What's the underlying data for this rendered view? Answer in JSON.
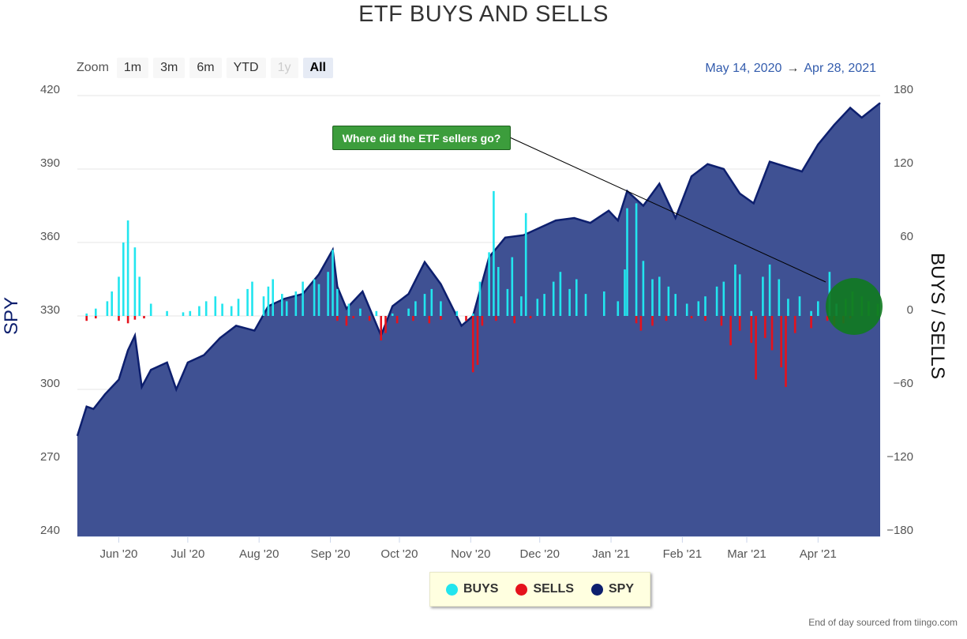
{
  "title": "ETF BUYS AND SELLS",
  "zoom": {
    "label": "Zoom",
    "buttons": [
      "1m",
      "3m",
      "6m",
      "YTD",
      "1y",
      "All"
    ],
    "active": "All",
    "disabled": [
      "1y"
    ]
  },
  "range": {
    "from": "May 14, 2020",
    "arrow": "→",
    "to": "Apr 28, 2021"
  },
  "annotation": "Where did the ETF sellers go?",
  "credits": "End of day sourced from tiingo.com",
  "colors": {
    "area": "#3f5193",
    "area_line": "#0d1f6e",
    "buys": "#22e5ee",
    "sells": "#e5121c",
    "highlight": "#0f7a1f",
    "annotation_bg": "#3c9d3c"
  },
  "chart_data": {
    "type": "area",
    "title": "ETF BUYS AND SELLS",
    "x_ticks": [
      "Jun '20",
      "Jul '20",
      "Aug '20",
      "Sep '20",
      "Oct '20",
      "Nov '20",
      "Dec '20",
      "Jan '21",
      "Feb '21",
      "Mar '21",
      "Apr '21"
    ],
    "x_tick_dates": [
      "2020-06-01",
      "2020-07-01",
      "2020-08-01",
      "2020-09-01",
      "2020-10-01",
      "2020-11-01",
      "2020-12-01",
      "2021-01-01",
      "2021-02-01",
      "2021-03-01",
      "2021-04-01"
    ],
    "x_range": [
      "2020-05-14",
      "2021-04-28"
    ],
    "left_axis": {
      "label": "SPY",
      "ticks": [
        240,
        270,
        300,
        330,
        360,
        390,
        420
      ],
      "ylim": [
        240,
        420
      ]
    },
    "right_axis": {
      "label": "BUYS / SELLS",
      "ticks": [
        -180,
        -120,
        -60,
        0,
        60,
        120,
        180
      ],
      "ylim": [
        -180,
        180
      ]
    },
    "legend": {
      "position": "bottom-center",
      "items": [
        {
          "name": "BUYS",
          "color": "#22e5ee"
        },
        {
          "name": "SELLS",
          "color": "#e5121c"
        },
        {
          "name": "SPY",
          "color": "#0d1f6e"
        }
      ]
    },
    "spy": [
      [
        "2020-05-14",
        281
      ],
      [
        "2020-05-18",
        293
      ],
      [
        "2020-05-21",
        292
      ],
      [
        "2020-05-26",
        298
      ],
      [
        "2020-06-01",
        304
      ],
      [
        "2020-06-05",
        316
      ],
      [
        "2020-06-08",
        322
      ],
      [
        "2020-06-11",
        301
      ],
      [
        "2020-06-15",
        308
      ],
      [
        "2020-06-22",
        311
      ],
      [
        "2020-06-26",
        300
      ],
      [
        "2020-07-01",
        311
      ],
      [
        "2020-07-08",
        314
      ],
      [
        "2020-07-15",
        321
      ],
      [
        "2020-07-22",
        326
      ],
      [
        "2020-07-30",
        324
      ],
      [
        "2020-08-05",
        334
      ],
      [
        "2020-08-12",
        337
      ],
      [
        "2020-08-20",
        339
      ],
      [
        "2020-08-27",
        347
      ],
      [
        "2020-09-02",
        357
      ],
      [
        "2020-09-04",
        342
      ],
      [
        "2020-09-08",
        333
      ],
      [
        "2020-09-15",
        340
      ],
      [
        "2020-09-23",
        322
      ],
      [
        "2020-09-28",
        334
      ],
      [
        "2020-10-05",
        339
      ],
      [
        "2020-10-12",
        352
      ],
      [
        "2020-10-19",
        343
      ],
      [
        "2020-10-28",
        326
      ],
      [
        "2020-11-02",
        330
      ],
      [
        "2020-11-09",
        354
      ],
      [
        "2020-11-16",
        362
      ],
      [
        "2020-11-24",
        363
      ],
      [
        "2020-12-01",
        366
      ],
      [
        "2020-12-08",
        369
      ],
      [
        "2020-12-16",
        370
      ],
      [
        "2020-12-23",
        368
      ],
      [
        "2020-12-31",
        373
      ],
      [
        "2021-01-04",
        369
      ],
      [
        "2021-01-08",
        381
      ],
      [
        "2021-01-15",
        375
      ],
      [
        "2021-01-22",
        384
      ],
      [
        "2021-01-29",
        370
      ],
      [
        "2021-02-05",
        387
      ],
      [
        "2021-02-12",
        392
      ],
      [
        "2021-02-19",
        390
      ],
      [
        "2021-02-26",
        380
      ],
      [
        "2021-03-04",
        376
      ],
      [
        "2021-03-11",
        393
      ],
      [
        "2021-03-18",
        391
      ],
      [
        "2021-03-25",
        389
      ],
      [
        "2021-04-01",
        400
      ],
      [
        "2021-04-08",
        408
      ],
      [
        "2021-04-15",
        415
      ],
      [
        "2021-04-20",
        411
      ],
      [
        "2021-04-28",
        417
      ]
    ],
    "buys": [
      [
        "2020-05-18",
        2
      ],
      [
        "2020-05-22",
        6
      ],
      [
        "2020-05-27",
        12
      ],
      [
        "2020-05-29",
        20
      ],
      [
        "2020-06-01",
        32
      ],
      [
        "2020-06-03",
        60
      ],
      [
        "2020-06-05",
        78
      ],
      [
        "2020-06-08",
        56
      ],
      [
        "2020-06-10",
        32
      ],
      [
        "2020-06-15",
        10
      ],
      [
        "2020-06-22",
        4
      ],
      [
        "2020-06-29",
        3
      ],
      [
        "2020-07-02",
        4
      ],
      [
        "2020-07-06",
        8
      ],
      [
        "2020-07-09",
        12
      ],
      [
        "2020-07-13",
        16
      ],
      [
        "2020-07-16",
        10
      ],
      [
        "2020-07-20",
        8
      ],
      [
        "2020-07-23",
        14
      ],
      [
        "2020-07-27",
        22
      ],
      [
        "2020-07-29",
        28
      ],
      [
        "2020-08-03",
        16
      ],
      [
        "2020-08-05",
        24
      ],
      [
        "2020-08-07",
        30
      ],
      [
        "2020-08-11",
        18
      ],
      [
        "2020-08-13",
        12
      ],
      [
        "2020-08-17",
        20
      ],
      [
        "2020-08-20",
        28
      ],
      [
        "2020-08-25",
        30
      ],
      [
        "2020-08-27",
        26
      ],
      [
        "2020-08-31",
        36
      ],
      [
        "2020-09-02",
        54
      ],
      [
        "2020-09-04",
        22
      ],
      [
        "2020-09-09",
        10
      ],
      [
        "2020-09-14",
        6
      ],
      [
        "2020-09-21",
        4
      ],
      [
        "2020-09-28",
        2
      ],
      [
        "2020-10-05",
        6
      ],
      [
        "2020-10-08",
        12
      ],
      [
        "2020-10-12",
        18
      ],
      [
        "2020-10-15",
        22
      ],
      [
        "2020-10-19",
        12
      ],
      [
        "2020-10-26",
        4
      ],
      [
        "2020-11-02",
        2
      ],
      [
        "2020-11-05",
        28
      ],
      [
        "2020-11-09",
        52
      ],
      [
        "2020-11-11",
        102
      ],
      [
        "2020-11-13",
        40
      ],
      [
        "2020-11-17",
        22
      ],
      [
        "2020-11-19",
        48
      ],
      [
        "2020-11-23",
        16
      ],
      [
        "2020-11-25",
        84
      ],
      [
        "2020-11-30",
        14
      ],
      [
        "2020-12-03",
        18
      ],
      [
        "2020-12-07",
        28
      ],
      [
        "2020-12-10",
        36
      ],
      [
        "2020-12-14",
        22
      ],
      [
        "2020-12-17",
        30
      ],
      [
        "2020-12-21",
        18
      ],
      [
        "2020-12-29",
        20
      ],
      [
        "2021-01-04",
        12
      ],
      [
        "2021-01-07",
        38
      ],
      [
        "2021-01-08",
        88
      ],
      [
        "2021-01-12",
        92
      ],
      [
        "2021-01-15",
        45
      ],
      [
        "2021-01-19",
        30
      ],
      [
        "2021-01-22",
        32
      ],
      [
        "2021-01-26",
        24
      ],
      [
        "2021-01-29",
        18
      ],
      [
        "2021-02-03",
        10
      ],
      [
        "2021-02-08",
        12
      ],
      [
        "2021-02-11",
        16
      ],
      [
        "2021-02-16",
        24
      ],
      [
        "2021-02-19",
        28
      ],
      [
        "2021-02-24",
        42
      ],
      [
        "2021-02-26",
        34
      ],
      [
        "2021-03-03",
        4
      ],
      [
        "2021-03-08",
        32
      ],
      [
        "2021-03-11",
        42
      ],
      [
        "2021-03-15",
        30
      ],
      [
        "2021-03-19",
        14
      ],
      [
        "2021-03-24",
        16
      ],
      [
        "2021-03-29",
        4
      ],
      [
        "2021-04-01",
        12
      ],
      [
        "2021-04-06",
        36
      ],
      [
        "2021-04-09",
        10
      ],
      [
        "2021-04-13",
        14
      ],
      [
        "2021-04-16",
        20
      ],
      [
        "2021-04-20",
        16
      ],
      [
        "2021-04-23",
        12
      ],
      [
        "2021-04-27",
        10
      ]
    ],
    "sells": [
      [
        "2020-05-18",
        -4
      ],
      [
        "2020-05-22",
        -2
      ],
      [
        "2020-06-01",
        -4
      ],
      [
        "2020-06-05",
        -6
      ],
      [
        "2020-06-08",
        -3
      ],
      [
        "2020-06-12",
        -2
      ],
      [
        "2020-09-04",
        -4
      ],
      [
        "2020-09-08",
        -8
      ],
      [
        "2020-09-11",
        -2
      ],
      [
        "2020-09-18",
        -4
      ],
      [
        "2020-09-23",
        -20
      ],
      [
        "2020-09-25",
        -14
      ],
      [
        "2020-09-30",
        -6
      ],
      [
        "2020-10-07",
        -4
      ],
      [
        "2020-10-14",
        -6
      ],
      [
        "2020-10-19",
        -3
      ],
      [
        "2020-10-30",
        -4
      ],
      [
        "2020-11-02",
        -46
      ],
      [
        "2020-11-04",
        -40
      ],
      [
        "2020-11-06",
        -8
      ],
      [
        "2020-11-12",
        -4
      ],
      [
        "2020-11-20",
        -6
      ],
      [
        "2020-11-27",
        -2
      ],
      [
        "2021-01-12",
        -6
      ],
      [
        "2021-01-14",
        -12
      ],
      [
        "2021-01-19",
        -8
      ],
      [
        "2021-01-25",
        -4
      ],
      [
        "2021-02-05",
        -2
      ],
      [
        "2021-02-11",
        -4
      ],
      [
        "2021-02-18",
        -8
      ],
      [
        "2021-02-22",
        -24
      ],
      [
        "2021-02-26",
        -12
      ],
      [
        "2021-03-03",
        -22
      ],
      [
        "2021-03-05",
        -52
      ],
      [
        "2021-03-09",
        -18
      ],
      [
        "2021-03-12",
        -28
      ],
      [
        "2021-03-16",
        -42
      ],
      [
        "2021-03-18",
        -58
      ],
      [
        "2021-03-22",
        -14
      ],
      [
        "2021-03-29",
        -10
      ],
      [
        "2021-04-05",
        -4
      ],
      [
        "2021-04-08",
        -8
      ],
      [
        "2021-04-12",
        -6
      ],
      [
        "2021-04-15",
        -2
      ]
    ]
  }
}
